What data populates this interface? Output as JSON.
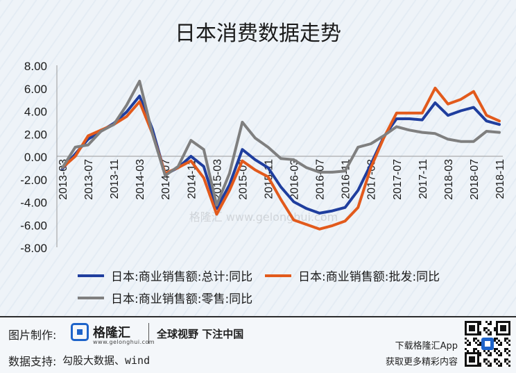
{
  "chart_data": {
    "type": "line",
    "title": "日本消费数据走势",
    "categories": [
      "2013-03",
      "2013-05",
      "2013-07",
      "2013-09",
      "2013-11",
      "2014-01",
      "2014-03",
      "2014-05",
      "2014-07",
      "2014-09",
      "2014-11",
      "2015-01",
      "2015-03",
      "2015-05",
      "2015-07",
      "2015-09",
      "2015-11",
      "2016-01",
      "2016-03",
      "2016-05",
      "2016-07",
      "2016-09",
      "2016-11",
      "2017-01",
      "2017-03",
      "2017-05",
      "2017-07",
      "2017-09",
      "2017-11",
      "2018-01",
      "2018-03",
      "2018-05",
      "2018-07",
      "2018-09",
      "2018-11"
    ],
    "x_tick_labels": [
      "2013-03",
      "2013-07",
      "2013-11",
      "2014-03",
      "2014-07",
      "2014-11",
      "2015-03",
      "2015-07",
      "2015-11",
      "2016-03",
      "2016-07",
      "2016-11",
      "2017-03",
      "2017-07",
      "2017-11",
      "2018-03",
      "2018-07",
      "2018-11"
    ],
    "y_tick_labels": [
      "8.00",
      "6.00",
      "4.00",
      "2.00",
      "0.00",
      "-2.00",
      "-4.00",
      "-6.00",
      "-8.00"
    ],
    "ylim": [
      -8,
      8
    ],
    "grid": false,
    "legend_position": "bottom",
    "series": [
      {
        "name": "日本:商业销售额:总计:同比",
        "color": "#1f3e9e",
        "values": [
          -1.1,
          0.2,
          1.5,
          2.2,
          2.9,
          3.9,
          5.3,
          2.4,
          -1.6,
          -1.0,
          0.0,
          -0.9,
          -4.6,
          -2.5,
          0.6,
          -0.3,
          -1.0,
          -2.7,
          -4.0,
          -4.6,
          -5.0,
          -4.8,
          -4.5,
          -3.0,
          -0.7,
          1.7,
          3.3,
          3.3,
          3.2,
          4.7,
          3.6,
          4.0,
          4.3,
          3.1,
          2.8
        ]
      },
      {
        "name": "日本:商业销售额:批发:同比",
        "color": "#e25a1c",
        "values": [
          -1.0,
          0.0,
          1.8,
          2.3,
          2.8,
          3.5,
          4.8,
          2.0,
          -1.5,
          -1.0,
          -0.4,
          -1.9,
          -5.1,
          -3.0,
          -0.4,
          -1.2,
          -1.8,
          -3.8,
          -5.6,
          -6.0,
          -6.4,
          -6.1,
          -5.7,
          -4.5,
          -1.0,
          1.6,
          3.8,
          3.8,
          3.8,
          6.0,
          4.6,
          5.0,
          5.7,
          3.6,
          3.1
        ]
      },
      {
        "name": "日本:商业销售额:零售:同比",
        "color": "#7f7f7f",
        "values": [
          -1.0,
          0.8,
          1.0,
          2.2,
          2.8,
          4.5,
          6.6,
          2.0,
          -1.7,
          -0.9,
          1.4,
          0.6,
          -4.3,
          -1.5,
          3.0,
          1.6,
          0.8,
          -0.2,
          -0.3,
          -1.0,
          -1.4,
          -1.4,
          -1.3,
          0.8,
          1.1,
          1.8,
          2.6,
          2.3,
          2.1,
          2.0,
          1.5,
          1.3,
          1.3,
          2.2,
          2.1
        ]
      }
    ],
    "watermark": "格隆汇 www.gelonghui.com"
  },
  "footer": {
    "made_by_label": "图片制作:",
    "brand_name": "格隆汇",
    "brand_domain": "www.gelonghui.com",
    "slogan": "全球视野 下注中国",
    "support_label": "数据支持:",
    "support_value": "勾股大数据、wind",
    "app_line1": "下载格隆汇App",
    "app_line2": "获取更多精彩内容"
  }
}
